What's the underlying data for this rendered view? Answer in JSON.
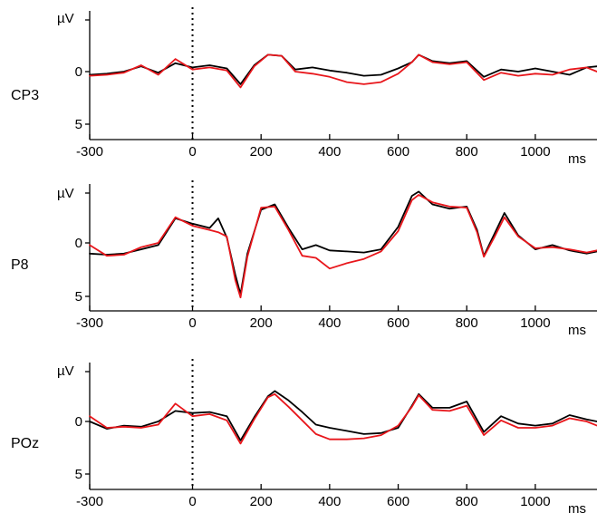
{
  "colors": {
    "series_black": "#000000",
    "series_red": "#e8161b",
    "axis": "#000000"
  },
  "chart_data": [
    {
      "type": "line",
      "channel": "CP3",
      "y_unit": "µV",
      "x_unit": "ms",
      "xlim": [
        -300,
        1180
      ],
      "ylim": [
        -6,
        6
      ],
      "y_inverted": true,
      "x_ticks": [
        -300,
        0,
        200,
        400,
        600,
        800,
        1000
      ],
      "y_ticks": [
        0,
        5
      ],
      "zero_line": "dotted vertical at 0 ms",
      "grid": false,
      "series": [
        {
          "color": "#000000",
          "x": [
            -300,
            -250,
            -200,
            -150,
            -100,
            -50,
            0,
            50,
            100,
            140,
            180,
            220,
            260,
            300,
            350,
            400,
            450,
            500,
            550,
            600,
            640,
            660,
            700,
            750,
            800,
            850,
            900,
            950,
            1000,
            1050,
            1100,
            1150,
            1180
          ],
          "y": [
            0.3,
            0.2,
            0.0,
            -0.5,
            0.1,
            -0.8,
            -0.4,
            -0.6,
            -0.3,
            1.2,
            -0.6,
            -1.6,
            -1.5,
            -0.2,
            -0.4,
            -0.1,
            0.1,
            0.4,
            0.3,
            -0.3,
            -0.9,
            -1.6,
            -1.0,
            -0.8,
            -1.0,
            0.5,
            -0.2,
            0.0,
            -0.3,
            0.0,
            0.3,
            -0.4,
            -0.5
          ]
        },
        {
          "color": "#e8161b",
          "x": [
            -300,
            -250,
            -200,
            -150,
            -100,
            -50,
            0,
            50,
            100,
            140,
            180,
            220,
            260,
            300,
            350,
            400,
            450,
            500,
            550,
            600,
            640,
            660,
            700,
            750,
            800,
            850,
            900,
            950,
            1000,
            1050,
            1100,
            1150,
            1180
          ],
          "y": [
            0.4,
            0.3,
            0.1,
            -0.6,
            0.3,
            -1.2,
            -0.2,
            -0.4,
            -0.1,
            1.5,
            -0.5,
            -1.6,
            -1.5,
            0.0,
            0.2,
            0.5,
            1.0,
            1.2,
            1.0,
            0.2,
            -0.9,
            -1.6,
            -0.9,
            -0.7,
            -0.9,
            0.8,
            0.1,
            0.4,
            0.2,
            0.3,
            -0.2,
            -0.4,
            0.0
          ]
        }
      ]
    },
    {
      "type": "line",
      "channel": "P8",
      "y_unit": "µV",
      "x_unit": "ms",
      "xlim": [
        -300,
        1180
      ],
      "ylim": [
        -6,
        6
      ],
      "y_inverted": true,
      "x_ticks": [
        -300,
        0,
        200,
        400,
        600,
        800,
        1000
      ],
      "y_ticks": [
        0,
        5
      ],
      "zero_line": "dotted vertical at 0 ms",
      "grid": false,
      "series": [
        {
          "color": "#000000",
          "x": [
            -300,
            -250,
            -200,
            -150,
            -100,
            -50,
            0,
            50,
            75,
            100,
            125,
            140,
            160,
            200,
            240,
            280,
            320,
            360,
            400,
            450,
            500,
            550,
            600,
            640,
            660,
            700,
            750,
            800,
            830,
            850,
            880,
            910,
            950,
            1000,
            1050,
            1100,
            1150,
            1180
          ],
          "y": [
            1.0,
            1.1,
            1.0,
            0.6,
            0.2,
            -2.3,
            -1.8,
            -1.4,
            -2.3,
            -0.5,
            3.0,
            4.8,
            1.0,
            -3.1,
            -3.6,
            -1.4,
            0.6,
            0.2,
            0.7,
            0.8,
            0.9,
            0.6,
            -1.5,
            -4.4,
            -4.8,
            -3.6,
            -3.2,
            -3.4,
            -1.2,
            1.2,
            -0.8,
            -2.8,
            -0.7,
            0.6,
            0.2,
            0.7,
            1.0,
            0.8
          ]
        },
        {
          "color": "#e8161b",
          "x": [
            -300,
            -250,
            -200,
            -150,
            -100,
            -50,
            0,
            50,
            75,
            100,
            125,
            140,
            160,
            200,
            240,
            280,
            320,
            360,
            400,
            450,
            500,
            550,
            600,
            640,
            660,
            700,
            750,
            800,
            830,
            850,
            880,
            910,
            950,
            1000,
            1050,
            1100,
            1150,
            1180
          ],
          "y": [
            0.2,
            1.2,
            1.1,
            0.4,
            0.0,
            -2.4,
            -1.6,
            -1.2,
            -1.0,
            -0.6,
            3.5,
            5.1,
            1.3,
            -3.3,
            -3.4,
            -1.2,
            1.2,
            1.4,
            2.4,
            1.9,
            1.5,
            0.8,
            -1.1,
            -4.0,
            -4.5,
            -3.8,
            -3.4,
            -3.3,
            -1.0,
            1.3,
            -0.5,
            -2.4,
            -0.6,
            0.5,
            0.4,
            0.6,
            0.9,
            0.7
          ]
        }
      ]
    },
    {
      "type": "line",
      "channel": "POz",
      "y_unit": "µV",
      "x_unit": "ms",
      "xlim": [
        -300,
        1180
      ],
      "ylim": [
        -6,
        6
      ],
      "y_inverted": true,
      "x_ticks": [
        -300,
        0,
        200,
        400,
        600,
        800,
        1000
      ],
      "y_ticks": [
        0,
        5
      ],
      "zero_line": "dotted vertical at 0 ms",
      "grid": false,
      "series": [
        {
          "color": "#000000",
          "x": [
            -300,
            -250,
            -200,
            -150,
            -100,
            -50,
            0,
            50,
            100,
            140,
            180,
            220,
            240,
            280,
            320,
            360,
            400,
            450,
            500,
            550,
            600,
            640,
            660,
            700,
            750,
            800,
            850,
            900,
            950,
            1000,
            1050,
            1100,
            1150,
            1180
          ],
          "y": [
            0.0,
            0.7,
            0.4,
            0.5,
            0.0,
            -1.0,
            -0.8,
            -0.9,
            -0.5,
            1.8,
            -0.4,
            -2.4,
            -2.9,
            -2.0,
            -0.9,
            0.3,
            0.6,
            0.9,
            1.2,
            1.1,
            0.6,
            -1.5,
            -2.6,
            -1.3,
            -1.3,
            -1.9,
            1.0,
            -0.5,
            0.2,
            0.4,
            0.2,
            -0.6,
            -0.2,
            0.0
          ]
        },
        {
          "color": "#e8161b",
          "x": [
            -300,
            -250,
            -200,
            -150,
            -100,
            -50,
            0,
            50,
            100,
            140,
            180,
            220,
            240,
            280,
            320,
            360,
            400,
            450,
            500,
            550,
            600,
            640,
            660,
            700,
            750,
            800,
            850,
            900,
            950,
            1000,
            1050,
            1100,
            1150,
            1180
          ],
          "y": [
            -0.5,
            0.6,
            0.5,
            0.6,
            0.3,
            -1.7,
            -0.5,
            -0.7,
            -0.1,
            2.1,
            -0.2,
            -2.3,
            -2.6,
            -1.4,
            -0.1,
            1.2,
            1.7,
            1.7,
            1.6,
            1.3,
            0.4,
            -1.4,
            -2.5,
            -1.1,
            -1.0,
            -1.5,
            1.3,
            -0.1,
            0.6,
            0.6,
            0.4,
            -0.3,
            0.0,
            0.4
          ]
        }
      ]
    }
  ]
}
